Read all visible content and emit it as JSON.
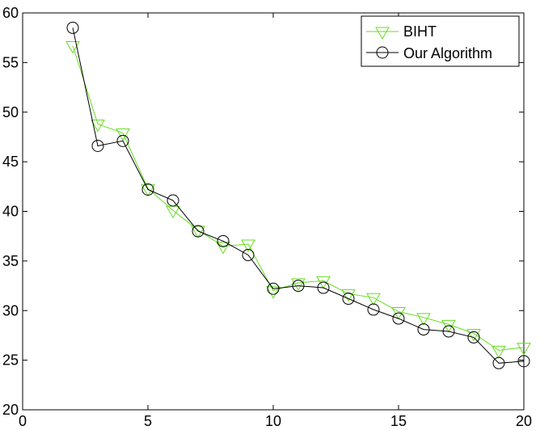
{
  "chart_data": {
    "type": "line",
    "title": "",
    "xlabel": "",
    "ylabel": "",
    "xlim": [
      0,
      20
    ],
    "ylim": [
      20,
      60
    ],
    "xticks": [
      0,
      5,
      10,
      15,
      20
    ],
    "yticks": [
      20,
      25,
      30,
      35,
      40,
      45,
      50,
      55,
      60
    ],
    "xtick_labels": [
      "0",
      "5",
      "10",
      "15",
      "20"
    ],
    "ytick_labels": [
      "20",
      "25",
      "30",
      "35",
      "40",
      "45",
      "50",
      "55",
      "60"
    ],
    "grid": false,
    "legend_position": "top-right",
    "series": [
      {
        "name": "BIHT",
        "color": "#66dd22",
        "marker": "triangle-down",
        "x": [
          2,
          3,
          4,
          5,
          6,
          7,
          8,
          9,
          10,
          11,
          12,
          13,
          14,
          15,
          16,
          17,
          18,
          19,
          20
        ],
        "y": [
          56.7,
          48.8,
          47.9,
          42.3,
          40.1,
          38.1,
          36.5,
          36.7,
          32.0,
          32.8,
          33.0,
          31.7,
          31.3,
          29.9,
          29.3,
          28.6,
          27.7,
          26.0,
          26.3
        ]
      },
      {
        "name": "Our Algorithm",
        "color": "#000000",
        "marker": "circle",
        "x": [
          2,
          3,
          4,
          5,
          6,
          7,
          8,
          9,
          10,
          11,
          12,
          13,
          14,
          15,
          16,
          17,
          18,
          19,
          20
        ],
        "y": [
          58.5,
          46.6,
          47.1,
          42.2,
          41.1,
          38.0,
          37.0,
          35.6,
          32.2,
          32.5,
          32.3,
          31.2,
          30.1,
          29.2,
          28.1,
          27.9,
          27.3,
          24.7,
          24.9
        ]
      }
    ]
  }
}
